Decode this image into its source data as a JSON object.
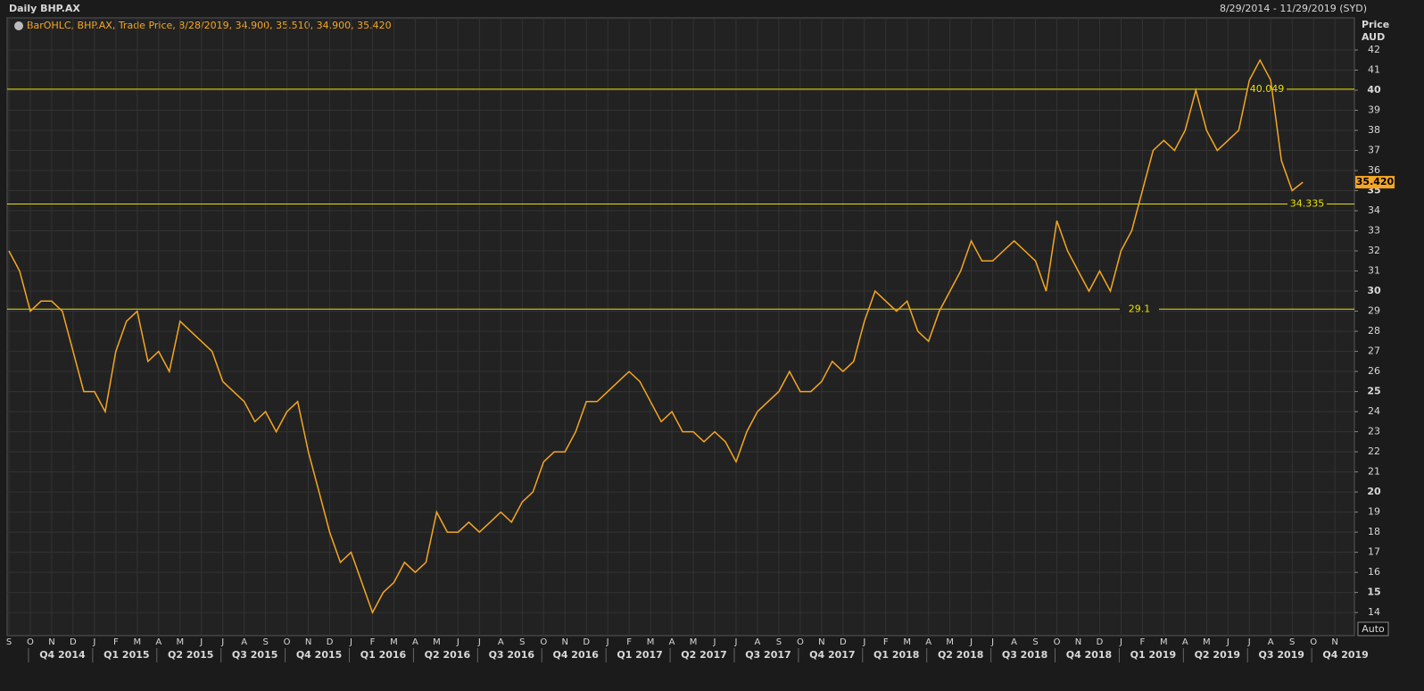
{
  "chart_data": {
    "type": "line",
    "title": "Daily BHP.AX",
    "date_range": "8/29/2014 - 11/29/2019 (SYD)",
    "legend_text": "BarOHLC, BHP.AX, Trade Price, 8/28/2019, 34.900, 35.510, 34.900, 35.420",
    "y_axis_label": "Price",
    "currency": "AUD",
    "scale_button": "Auto",
    "month_labels": [
      "S",
      "O",
      "N",
      "D",
      "J",
      "F",
      "M",
      "A",
      "M",
      "J",
      "J",
      "A",
      "S",
      "O",
      "N",
      "D",
      "J",
      "F",
      "M",
      "A",
      "M",
      "J",
      "J",
      "A",
      "S",
      "O",
      "N",
      "D",
      "J",
      "F",
      "M",
      "A",
      "M",
      "J",
      "J",
      "A",
      "S",
      "O",
      "N",
      "D",
      "J",
      "F",
      "M",
      "A",
      "M",
      "J",
      "J",
      "A",
      "S",
      "O",
      "N",
      "D",
      "J",
      "F",
      "M",
      "A",
      "M",
      "J",
      "J",
      "A",
      "S",
      "O",
      "N"
    ],
    "quarter_labels": [
      "Q4 2014",
      "Q1 2015",
      "Q2 2015",
      "Q3 2015",
      "Q4 2015",
      "Q1 2016",
      "Q2 2016",
      "Q3 2016",
      "Q4 2016",
      "Q1 2017",
      "Q2 2017",
      "Q3 2017",
      "Q4 2017",
      "Q1 2018",
      "Q2 2018",
      "Q3 2018",
      "Q4 2018",
      "Q1 2019",
      "Q2 2019",
      "Q3 2019",
      "Q4 2019"
    ],
    "series": [
      {
        "name": "BHP.AX",
        "color": "#f5a623",
        "values": [
          32,
          31,
          29,
          29.5,
          29.5,
          29,
          27,
          25,
          25,
          24,
          27,
          28.5,
          29,
          26.5,
          27,
          26,
          28.5,
          28,
          27.5,
          27,
          25.5,
          25,
          24.5,
          23.5,
          24,
          23,
          24,
          24.5,
          22,
          20,
          18,
          16.5,
          17,
          15.5,
          14,
          15,
          15.5,
          16.5,
          16,
          16.5,
          19,
          18,
          18,
          18.5,
          18,
          18.5,
          19,
          18.5,
          19.5,
          20,
          21.5,
          22,
          22,
          23,
          24.5,
          24.5,
          25,
          25.5,
          26,
          25.5,
          24.5,
          23.5,
          24,
          23,
          23,
          22.5,
          23,
          22.5,
          21.5,
          23,
          24,
          24.5,
          25,
          26,
          25,
          25,
          25.5,
          26.5,
          26,
          26.5,
          28.5,
          30,
          29.5,
          29,
          29.5,
          28,
          27.5,
          29,
          30,
          31,
          32.5,
          31.5,
          31.5,
          32,
          32.5,
          32,
          31.5,
          30,
          33.5,
          32,
          31,
          30,
          31,
          30,
          32,
          33,
          35,
          37,
          37.5,
          37,
          38,
          40,
          38,
          37,
          37.5,
          38,
          40.5,
          41.5,
          40.5,
          36.5,
          35,
          35.42
        ]
      }
    ],
    "hlines": [
      40.049,
      34.335,
      29.1
    ],
    "last_price": {
      "value": 35.42,
      "label": "35.420"
    },
    "ylim": [
      12.85,
      43.6
    ],
    "yticks": [
      14,
      15,
      16,
      17,
      18,
      19,
      20,
      21,
      22,
      23,
      24,
      25,
      26,
      27,
      28,
      29,
      30,
      31,
      32,
      33,
      34,
      35,
      36,
      37,
      38,
      39,
      40,
      41,
      42
    ],
    "grid": true
  }
}
